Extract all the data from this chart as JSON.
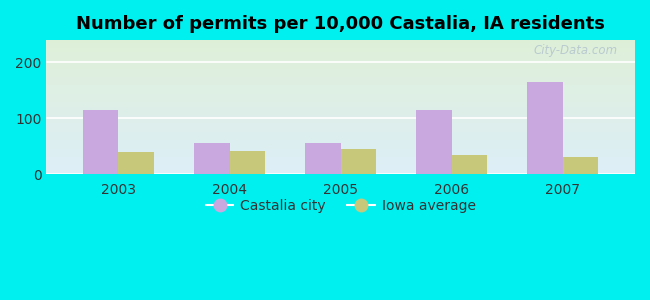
{
  "title": "Number of permits per 10,000 Castalia, IA residents",
  "years": [
    2003,
    2004,
    2005,
    2006,
    2007
  ],
  "castalia_values": [
    115,
    55,
    55,
    115,
    165
  ],
  "iowa_values": [
    40,
    42,
    45,
    35,
    30
  ],
  "castalia_color": "#c9a8e0",
  "iowa_color": "#c8c87a",
  "outer_bg": "#00f0f0",
  "plot_bg_top": "#ddeef8",
  "plot_bg_bottom": "#dff0d8",
  "ylim": [
    0,
    240
  ],
  "yticks": [
    0,
    100,
    200
  ],
  "bar_width": 0.32,
  "legend_labels": [
    "Castalia city",
    "Iowa average"
  ],
  "title_fontsize": 13,
  "watermark": "City-Data.com"
}
